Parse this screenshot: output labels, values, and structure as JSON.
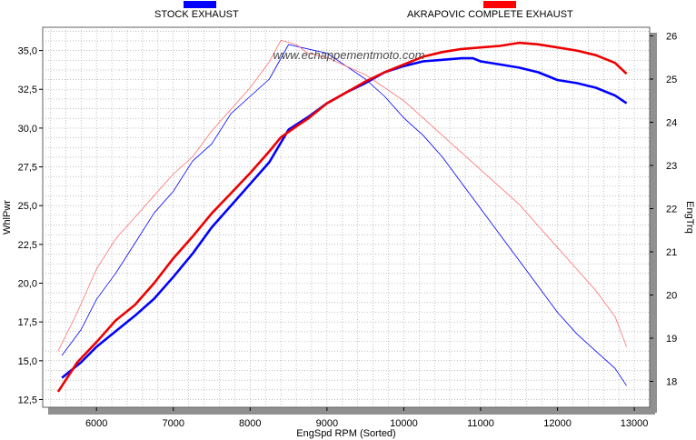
{
  "chart_data": {
    "type": "line",
    "watermark": "www.echappementmoto.com",
    "xlabel": "EngSpd  RPM   (Sorted)",
    "ylabel_left": "WhlPwr",
    "ylabel_right": "EngTrq",
    "xlim": [
      5300,
      13200
    ],
    "ylim_left": [
      12.0,
      36.5
    ],
    "ylim_right": [
      17.4,
      26.2
    ],
    "x_ticks": [
      "6000",
      "7000",
      "8000",
      "9000",
      "10000",
      "11000",
      "12000",
      "13000"
    ],
    "y_left_ticks": [
      "12,5",
      "15,0",
      "17,5",
      "20,0",
      "22,5",
      "25,0",
      "27,5",
      "30,0",
      "32,5",
      "35,0"
    ],
    "y_right_ticks": [
      "18",
      "19",
      "20",
      "21",
      "22",
      "23",
      "24",
      "25",
      "26"
    ],
    "grid": true,
    "legend": [
      {
        "name": "STOCK EXHAUST",
        "color": "#0000ff"
      },
      {
        "name": "AKRAPOVIC COMPLETE EXHAUST",
        "color": "#ff0000"
      }
    ],
    "series": [
      {
        "name": "STOCK EXHAUST",
        "quantity": "WhlPwr",
        "axis": "left",
        "color": "#0000ff",
        "weight": "bold",
        "x": [
          5550,
          5800,
          6000,
          6250,
          6500,
          6750,
          7000,
          7250,
          7500,
          7750,
          8000,
          8250,
          8500,
          8750,
          9000,
          9250,
          9500,
          9750,
          10000,
          10250,
          10500,
          10750,
          10900,
          11000,
          11250,
          11500,
          11750,
          12000,
          12250,
          12500,
          12750,
          12900
        ],
        "values": [
          13.9,
          14.9,
          15.9,
          16.9,
          17.9,
          19.0,
          20.4,
          21.9,
          23.6,
          25.0,
          26.4,
          27.8,
          29.9,
          30.7,
          31.6,
          32.3,
          32.9,
          33.6,
          34.0,
          34.3,
          34.4,
          34.5,
          34.5,
          34.3,
          34.1,
          33.9,
          33.6,
          33.1,
          32.9,
          32.6,
          32.1,
          31.6
        ]
      },
      {
        "name": "AKRAPOVIC COMPLETE EXHAUST",
        "quantity": "WhlPwr",
        "axis": "left",
        "color": "#ee0000",
        "weight": "bold",
        "x": [
          5500,
          5750,
          6000,
          6250,
          6500,
          6750,
          7000,
          7250,
          7500,
          7750,
          8000,
          8250,
          8400,
          8600,
          8750,
          9000,
          9250,
          9500,
          9750,
          10000,
          10250,
          10500,
          10750,
          11000,
          11250,
          11500,
          11750,
          12000,
          12250,
          12500,
          12750,
          12900
        ],
        "values": [
          13.0,
          14.9,
          16.2,
          17.6,
          18.6,
          20.0,
          21.6,
          23.0,
          24.5,
          25.8,
          27.1,
          28.5,
          29.4,
          30.1,
          30.6,
          31.6,
          32.3,
          33.0,
          33.6,
          34.1,
          34.6,
          34.9,
          35.1,
          35.2,
          35.3,
          35.5,
          35.4,
          35.2,
          35.0,
          34.7,
          34.2,
          33.5
        ]
      },
      {
        "name": "STOCK EXHAUST",
        "quantity": "EngTrq",
        "axis": "right",
        "color": "#0000ff",
        "weight": "thin",
        "x": [
          5550,
          5800,
          6000,
          6250,
          6500,
          6750,
          7000,
          7250,
          7500,
          7750,
          8000,
          8250,
          8500,
          8750,
          9000,
          9250,
          9500,
          9750,
          10000,
          10250,
          10500,
          10750,
          11000,
          11250,
          11500,
          11750,
          12000,
          12250,
          12500,
          12750,
          12900
        ],
        "values": [
          18.6,
          19.2,
          19.9,
          20.5,
          21.2,
          21.9,
          22.4,
          23.1,
          23.5,
          24.2,
          24.6,
          25.0,
          25.8,
          25.7,
          25.6,
          25.3,
          25.0,
          24.6,
          24.1,
          23.7,
          23.2,
          22.6,
          22.0,
          21.4,
          20.8,
          20.2,
          19.6,
          19.1,
          18.7,
          18.3,
          17.9
        ]
      },
      {
        "name": "AKRAPOVIC COMPLETE EXHAUST",
        "quantity": "EngTrq",
        "axis": "right",
        "color": "#ff7070",
        "weight": "thin",
        "x": [
          5500,
          5750,
          6000,
          6250,
          6500,
          6750,
          7000,
          7250,
          7500,
          7750,
          8000,
          8250,
          8400,
          8600,
          8750,
          9000,
          9250,
          9500,
          9750,
          10000,
          10250,
          10500,
          10750,
          11000,
          11250,
          11500,
          11750,
          12000,
          12250,
          12500,
          12750,
          12900
        ],
        "values": [
          18.7,
          19.6,
          20.6,
          21.3,
          21.8,
          22.3,
          22.8,
          23.2,
          23.8,
          24.3,
          24.8,
          25.4,
          25.9,
          25.8,
          25.6,
          25.5,
          25.3,
          25.1,
          24.8,
          24.5,
          24.1,
          23.7,
          23.3,
          22.9,
          22.5,
          22.1,
          21.6,
          21.1,
          20.6,
          20.1,
          19.5,
          18.8
        ]
      }
    ]
  }
}
